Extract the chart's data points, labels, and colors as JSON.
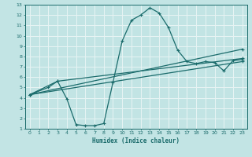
{
  "xlabel": "Humidex (Indice chaleur)",
  "xlim": [
    -0.5,
    23.5
  ],
  "ylim": [
    1,
    13
  ],
  "xticks": [
    0,
    1,
    2,
    3,
    4,
    5,
    6,
    7,
    8,
    9,
    10,
    11,
    12,
    13,
    14,
    15,
    16,
    17,
    18,
    19,
    20,
    21,
    22,
    23
  ],
  "yticks": [
    1,
    2,
    3,
    4,
    5,
    6,
    7,
    8,
    9,
    10,
    11,
    12,
    13
  ],
  "bg_color": "#c2e4e4",
  "line_color": "#1a6b6b",
  "grid_color": "#e8f4f4",
  "line1": {
    "x": [
      0,
      2,
      3,
      4,
      5,
      6,
      7,
      8,
      9,
      10,
      11,
      12,
      13,
      14,
      15,
      16,
      17,
      18,
      19,
      20,
      21,
      22,
      23
    ],
    "y": [
      4.3,
      5.0,
      5.6,
      3.9,
      1.4,
      1.3,
      1.3,
      1.5,
      5.5,
      9.5,
      11.5,
      12.0,
      12.7,
      12.2,
      10.8,
      8.6,
      7.5,
      7.3,
      7.5,
      7.4,
      6.6,
      7.6,
      7.7
    ]
  },
  "line2": {
    "x": [
      0,
      3,
      23
    ],
    "y": [
      4.3,
      5.6,
      7.8
    ]
  },
  "line3": {
    "x": [
      0,
      23
    ],
    "y": [
      4.3,
      7.5
    ]
  },
  "line4": {
    "x": [
      0,
      23
    ],
    "y": [
      4.3,
      8.7
    ]
  }
}
